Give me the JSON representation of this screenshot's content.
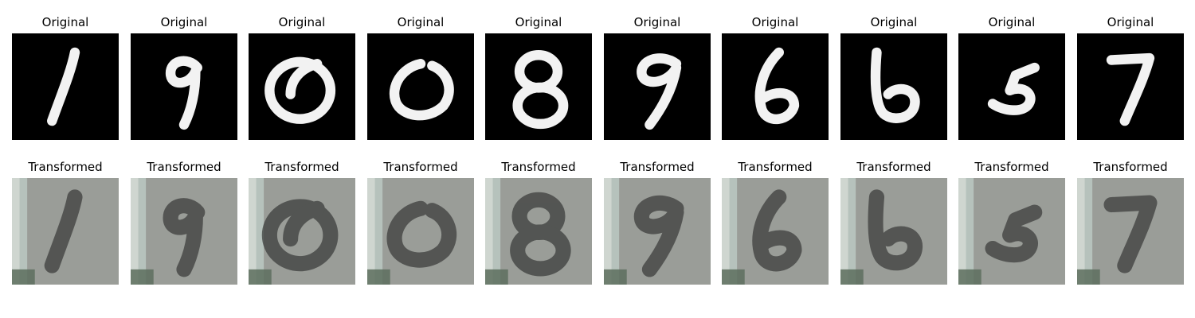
{
  "rows": [
    {
      "kind": "original",
      "panels": [
        {
          "title": "Original",
          "digit": "1"
        },
        {
          "title": "Original",
          "digit": "9"
        },
        {
          "title": "Original",
          "digit": "0"
        },
        {
          "title": "Original",
          "digit": "0"
        },
        {
          "title": "Original",
          "digit": "8"
        },
        {
          "title": "Original",
          "digit": "9"
        },
        {
          "title": "Original",
          "digit": "6"
        },
        {
          "title": "Original",
          "digit": "6"
        },
        {
          "title": "Original",
          "digit": "5"
        },
        {
          "title": "Original",
          "digit": "7"
        }
      ]
    },
    {
      "kind": "transformed",
      "panels": [
        {
          "title": "Transformed",
          "digit": "1"
        },
        {
          "title": "Transformed",
          "digit": "9"
        },
        {
          "title": "Transformed",
          "digit": "0"
        },
        {
          "title": "Transformed",
          "digit": "0"
        },
        {
          "title": "Transformed",
          "digit": "8"
        },
        {
          "title": "Transformed",
          "digit": "9"
        },
        {
          "title": "Transformed",
          "digit": "6"
        },
        {
          "title": "Transformed",
          "digit": "6"
        },
        {
          "title": "Transformed",
          "digit": "5"
        },
        {
          "title": "Transformed",
          "digit": "7"
        }
      ]
    }
  ],
  "colors": {
    "original_bg": "#000000",
    "original_stroke": "#f2f2f2",
    "transformed_bg": "#9a9d98",
    "transformed_stroke": "#3c3e3c",
    "title_text": "#000000"
  }
}
